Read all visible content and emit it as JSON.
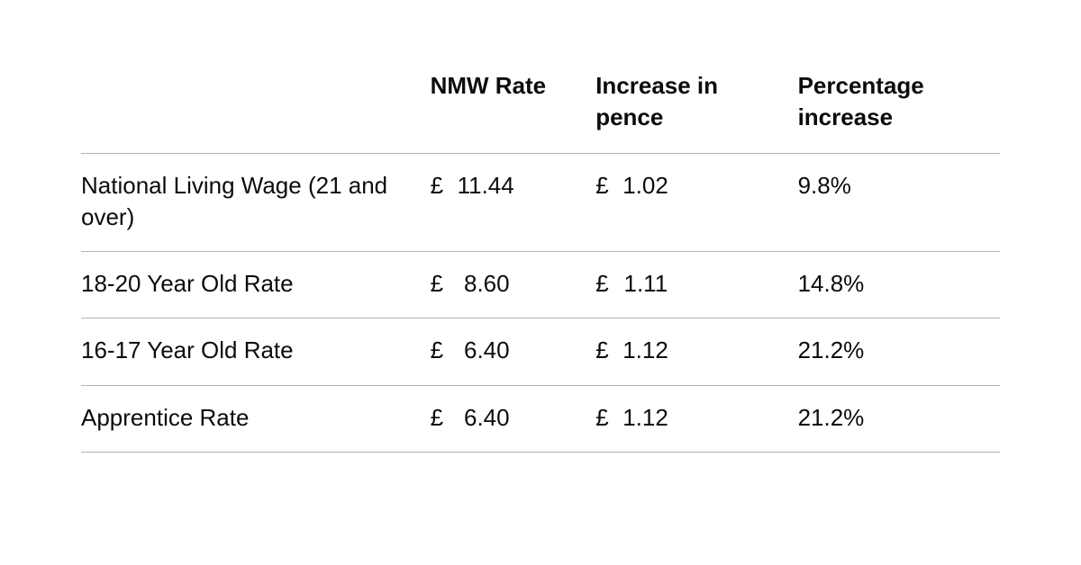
{
  "table": {
    "type": "table",
    "background_color": "#ffffff",
    "text_color": "#0b0c0c",
    "border_color": "#b1b4b6",
    "font_size_pt": 20,
    "header_font_weight": 700,
    "body_font_weight": 400,
    "currency_symbol": "£",
    "column_widths": [
      "38%",
      "18%",
      "22%",
      "22%"
    ],
    "columns": [
      "",
      "NMW Rate",
      "Increase in pence",
      "Percentage increase"
    ],
    "rows": [
      {
        "label": "National Living Wage (21 and over)",
        "rate": "11.44",
        "increase": "1.02",
        "percent": "9.8%"
      },
      {
        "label": "18-20 Year Old Rate",
        "rate": "8.60",
        "increase": "1.11",
        "percent": "14.8%"
      },
      {
        "label": "16-17 Year Old Rate",
        "rate": "6.40",
        "increase": "1.12",
        "percent": "21.2%"
      },
      {
        "label": "Apprentice Rate",
        "rate": "6.40",
        "increase": "1.12",
        "percent": "21.2%"
      }
    ]
  }
}
